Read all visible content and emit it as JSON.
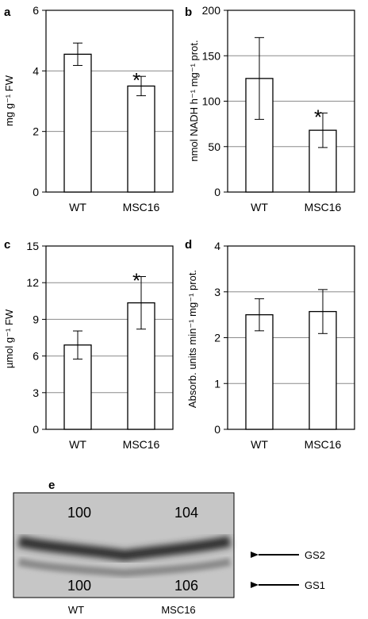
{
  "chart_data": [
    {
      "panel": "a",
      "type": "bar",
      "categories": [
        "WT",
        "MSC16"
      ],
      "values": [
        4.55,
        3.5
      ],
      "errors": [
        0.37,
        0.32
      ],
      "significant": [
        false,
        true
      ],
      "ylabel": "mg g⁻¹ FW",
      "ylim": [
        0,
        6
      ],
      "yticks": [
        0,
        2,
        4,
        6
      ],
      "grid": true
    },
    {
      "panel": "b",
      "type": "bar",
      "categories": [
        "WT",
        "MSC16"
      ],
      "values": [
        125,
        68
      ],
      "errors": [
        45,
        19
      ],
      "significant": [
        false,
        true
      ],
      "ylabel": "nmol NADH h⁻¹ mg⁻¹ prot.",
      "ylim": [
        0,
        200
      ],
      "yticks": [
        0,
        50,
        100,
        150,
        200
      ],
      "grid": true
    },
    {
      "panel": "c",
      "type": "bar",
      "categories": [
        "WT",
        "MSC16"
      ],
      "values": [
        6.9,
        10.35
      ],
      "errors": [
        1.15,
        2.15
      ],
      "significant": [
        false,
        true
      ],
      "ylabel": "µmol g⁻¹ FW",
      "ylim": [
        0,
        15
      ],
      "yticks": [
        0,
        3,
        6,
        9,
        12,
        15
      ],
      "grid": true
    },
    {
      "panel": "d",
      "type": "bar",
      "categories": [
        "WT",
        "MSC16"
      ],
      "values": [
        2.5,
        2.57
      ],
      "errors": [
        0.35,
        0.48
      ],
      "significant": [
        false,
        false
      ],
      "ylabel": "Absorb. units min⁻¹ mg⁻¹ prot.",
      "ylim": [
        0,
        4
      ],
      "yticks": [
        0,
        1,
        2,
        3,
        4
      ],
      "grid": true
    }
  ],
  "star": "*",
  "blot": {
    "panel": "e",
    "lanes": [
      "WT",
      "MSC16"
    ],
    "gs2_values": [
      "100",
      "104"
    ],
    "gs1_values": [
      "100",
      "106"
    ],
    "gs2_label": "GS2",
    "gs1_label": "GS1"
  }
}
